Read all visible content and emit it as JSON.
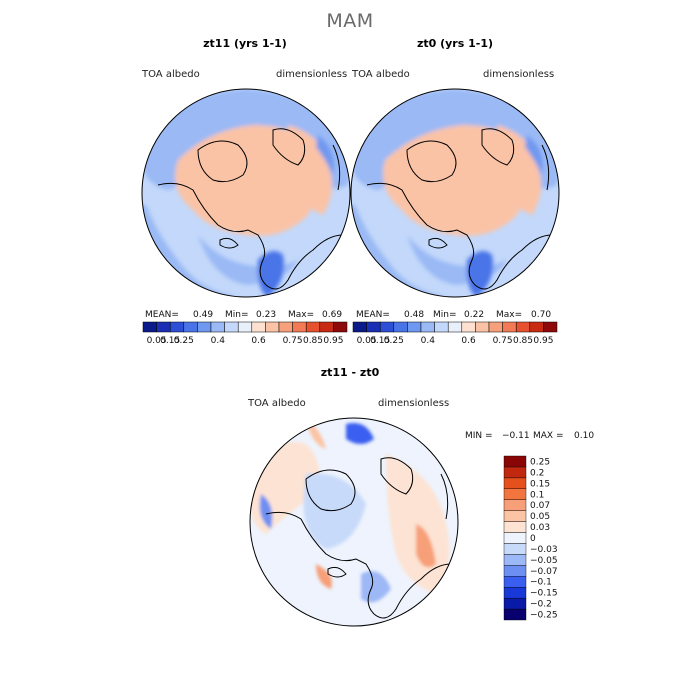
{
  "figure": {
    "season": "MAM"
  },
  "chart_data": [
    {
      "type": "heatmap",
      "title": "zt11 (yrs 1-1)",
      "variable": "TOA albedo",
      "units": "dimensionless",
      "projection": "north polar stereographic",
      "stats": {
        "mean_label": "MEAN=",
        "mean": "0.49",
        "min_label": "Min=",
        "min": "0.23",
        "max_label": "Max=",
        "max": "0.69"
      },
      "colorbar": {
        "colors": [
          "#0a1a8a",
          "#1b2fb5",
          "#2c4fd6",
          "#4874e8",
          "#6f98f0",
          "#9ab9f5",
          "#c3d8fa",
          "#e8f0fc",
          "#fde0cf",
          "#fbc3a6",
          "#f7a07c",
          "#f27b55",
          "#e65230",
          "#c92a14",
          "#8e0a0a"
        ],
        "tick_labels": [
          "0.05",
          "0.15",
          "0.25",
          "0.4",
          "0.6",
          "0.75",
          "0.85",
          "0.95"
        ],
        "range": [
          0,
          1
        ]
      }
    },
    {
      "type": "heatmap",
      "title": "zt0 (yrs 1-1)",
      "variable": "TOA albedo",
      "units": "dimensionless",
      "projection": "north polar stereographic",
      "stats": {
        "mean_label": "MEAN=",
        "mean": "0.48",
        "min_label": "Min=",
        "min": "0.22",
        "max_label": "Max=",
        "max": "0.70"
      },
      "colorbar": {
        "colors": [
          "#0a1a8a",
          "#1b2fb5",
          "#2c4fd6",
          "#4874e8",
          "#6f98f0",
          "#9ab9f5",
          "#c3d8fa",
          "#e8f0fc",
          "#fde0cf",
          "#fbc3a6",
          "#f7a07c",
          "#f27b55",
          "#e65230",
          "#c92a14",
          "#8e0a0a"
        ],
        "tick_labels": [
          "0.05",
          "0.15",
          "0.25",
          "0.4",
          "0.6",
          "0.75",
          "0.85",
          "0.95"
        ],
        "range": [
          0,
          1
        ]
      }
    },
    {
      "type": "heatmap",
      "title": "zt11 - zt0",
      "variable": "TOA albedo",
      "units": "dimensionless",
      "projection": "north polar stereographic",
      "stats": {
        "min_label": "MIN =",
        "min": "−0.11",
        "max_label": "MAX =",
        "max": "0.10"
      },
      "colorbar": {
        "colors": [
          "#08006e",
          "#0a1aa8",
          "#1838d8",
          "#3a5ef0",
          "#6e8ff2",
          "#9db8f6",
          "#c8daf9",
          "#eef3fd",
          "#fde3d3",
          "#fbc4a4",
          "#f79f78",
          "#f2753f",
          "#e6501d",
          "#c22810",
          "#8a0606"
        ],
        "levels": [
          "−0.25",
          "−0.2",
          "−0.15",
          "−0.1",
          "−0.07",
          "−0.05",
          "−0.03",
          "0",
          "0.03",
          "0.05",
          "0.07",
          "0.1",
          "0.15",
          "0.2",
          "0.25"
        ],
        "range": [
          -0.25,
          0.25
        ]
      }
    }
  ]
}
